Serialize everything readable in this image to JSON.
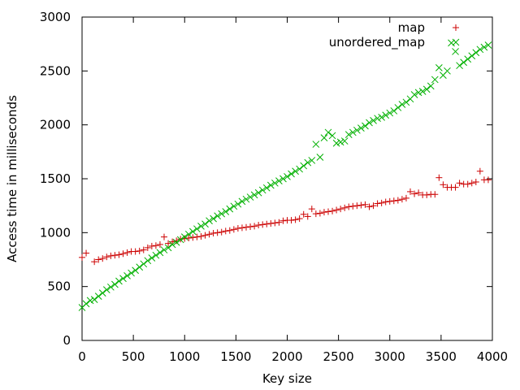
{
  "chart_data": {
    "type": "scatter",
    "xlabel": "Key size",
    "ylabel": "Access time in milliseconds",
    "xlim": [
      0,
      4000
    ],
    "ylim": [
      0,
      3000
    ],
    "xticks": [
      "0",
      "500",
      "1000",
      "1500",
      "2000",
      "2500",
      "3000",
      "3500",
      "4000"
    ],
    "yticks": [
      "0",
      "500",
      "1000",
      "1500",
      "2000",
      "2500",
      "3000"
    ],
    "grid": false,
    "legend_position": "top-right",
    "series": [
      {
        "name": "map",
        "marker": "plus",
        "color": "#cc0000",
        "points": [
          [
            0,
            770
          ],
          [
            40,
            810
          ],
          [
            120,
            730
          ],
          [
            160,
            750
          ],
          [
            200,
            760
          ],
          [
            240,
            775
          ],
          [
            280,
            785
          ],
          [
            320,
            790
          ],
          [
            360,
            795
          ],
          [
            400,
            805
          ],
          [
            440,
            815
          ],
          [
            480,
            825
          ],
          [
            520,
            825
          ],
          [
            560,
            830
          ],
          [
            600,
            840
          ],
          [
            640,
            860
          ],
          [
            680,
            875
          ],
          [
            720,
            880
          ],
          [
            760,
            890
          ],
          [
            800,
            960
          ],
          [
            840,
            900
          ],
          [
            880,
            915
          ],
          [
            920,
            925
          ],
          [
            960,
            940
          ],
          [
            1000,
            945
          ],
          [
            1040,
            950
          ],
          [
            1080,
            955
          ],
          [
            1120,
            960
          ],
          [
            1160,
            965
          ],
          [
            1200,
            975
          ],
          [
            1240,
            985
          ],
          [
            1280,
            995
          ],
          [
            1320,
            1000
          ],
          [
            1360,
            1005
          ],
          [
            1400,
            1015
          ],
          [
            1440,
            1020
          ],
          [
            1480,
            1030
          ],
          [
            1520,
            1040
          ],
          [
            1560,
            1045
          ],
          [
            1600,
            1050
          ],
          [
            1640,
            1055
          ],
          [
            1680,
            1060
          ],
          [
            1720,
            1070
          ],
          [
            1760,
            1075
          ],
          [
            1800,
            1080
          ],
          [
            1840,
            1085
          ],
          [
            1880,
            1090
          ],
          [
            1920,
            1095
          ],
          [
            1960,
            1110
          ],
          [
            2000,
            1115
          ],
          [
            2040,
            1115
          ],
          [
            2080,
            1120
          ],
          [
            2120,
            1130
          ],
          [
            2160,
            1170
          ],
          [
            2200,
            1150
          ],
          [
            2240,
            1220
          ],
          [
            2280,
            1175
          ],
          [
            2320,
            1180
          ],
          [
            2360,
            1190
          ],
          [
            2400,
            1195
          ],
          [
            2440,
            1200
          ],
          [
            2480,
            1210
          ],
          [
            2520,
            1220
          ],
          [
            2560,
            1230
          ],
          [
            2600,
            1240
          ],
          [
            2640,
            1245
          ],
          [
            2680,
            1250
          ],
          [
            2720,
            1255
          ],
          [
            2760,
            1260
          ],
          [
            2800,
            1240
          ],
          [
            2840,
            1250
          ],
          [
            2880,
            1270
          ],
          [
            2920,
            1275
          ],
          [
            2960,
            1285
          ],
          [
            3000,
            1290
          ],
          [
            3040,
            1295
          ],
          [
            3080,
            1300
          ],
          [
            3120,
            1310
          ],
          [
            3160,
            1320
          ],
          [
            3200,
            1380
          ],
          [
            3240,
            1360
          ],
          [
            3280,
            1370
          ],
          [
            3320,
            1350
          ],
          [
            3360,
            1350
          ],
          [
            3400,
            1355
          ],
          [
            3440,
            1355
          ],
          [
            3480,
            1510
          ],
          [
            3520,
            1445
          ],
          [
            3560,
            1420
          ],
          [
            3600,
            1420
          ],
          [
            3640,
            1420
          ],
          [
            3680,
            1460
          ],
          [
            3720,
            1450
          ],
          [
            3760,
            1450
          ],
          [
            3800,
            1460
          ],
          [
            3840,
            1470
          ],
          [
            3880,
            1570
          ],
          [
            3920,
            1490
          ],
          [
            3960,
            1490
          ]
        ]
      },
      {
        "name": "unordered_map",
        "marker": "cross",
        "color": "#00b000",
        "points": [
          [
            0,
            305
          ],
          [
            40,
            340
          ],
          [
            80,
            370
          ],
          [
            120,
            380
          ],
          [
            160,
            410
          ],
          [
            200,
            440
          ],
          [
            240,
            470
          ],
          [
            280,
            495
          ],
          [
            320,
            520
          ],
          [
            360,
            550
          ],
          [
            400,
            575
          ],
          [
            440,
            600
          ],
          [
            480,
            625
          ],
          [
            520,
            650
          ],
          [
            560,
            680
          ],
          [
            600,
            710
          ],
          [
            640,
            740
          ],
          [
            680,
            765
          ],
          [
            720,
            790
          ],
          [
            760,
            815
          ],
          [
            800,
            840
          ],
          [
            840,
            860
          ],
          [
            880,
            890
          ],
          [
            920,
            910
          ],
          [
            960,
            935
          ],
          [
            1000,
            960
          ],
          [
            1040,
            985
          ],
          [
            1080,
            1010
          ],
          [
            1120,
            1035
          ],
          [
            1160,
            1060
          ],
          [
            1200,
            1080
          ],
          [
            1240,
            1110
          ],
          [
            1280,
            1130
          ],
          [
            1320,
            1155
          ],
          [
            1360,
            1175
          ],
          [
            1400,
            1195
          ],
          [
            1440,
            1220
          ],
          [
            1480,
            1245
          ],
          [
            1520,
            1265
          ],
          [
            1560,
            1290
          ],
          [
            1600,
            1310
          ],
          [
            1640,
            1330
          ],
          [
            1680,
            1350
          ],
          [
            1720,
            1370
          ],
          [
            1760,
            1395
          ],
          [
            1800,
            1415
          ],
          [
            1840,
            1440
          ],
          [
            1880,
            1460
          ],
          [
            1920,
            1480
          ],
          [
            1960,
            1500
          ],
          [
            2000,
            1520
          ],
          [
            2040,
            1545
          ],
          [
            2080,
            1570
          ],
          [
            2120,
            1590
          ],
          [
            2160,
            1620
          ],
          [
            2200,
            1650
          ],
          [
            2240,
            1670
          ],
          [
            2280,
            1820
          ],
          [
            2320,
            1700
          ],
          [
            2360,
            1880
          ],
          [
            2400,
            1930
          ],
          [
            2440,
            1900
          ],
          [
            2480,
            1830
          ],
          [
            2520,
            1840
          ],
          [
            2560,
            1850
          ],
          [
            2600,
            1910
          ],
          [
            2640,
            1930
          ],
          [
            2680,
            1950
          ],
          [
            2720,
            1970
          ],
          [
            2760,
            1990
          ],
          [
            2800,
            2020
          ],
          [
            2840,
            2040
          ],
          [
            2880,
            2060
          ],
          [
            2920,
            2070
          ],
          [
            2960,
            2090
          ],
          [
            3000,
            2110
          ],
          [
            3040,
            2130
          ],
          [
            3080,
            2160
          ],
          [
            3120,
            2190
          ],
          [
            3160,
            2210
          ],
          [
            3200,
            2240
          ],
          [
            3240,
            2280
          ],
          [
            3280,
            2300
          ],
          [
            3320,
            2310
          ],
          [
            3360,
            2330
          ],
          [
            3400,
            2360
          ],
          [
            3440,
            2420
          ],
          [
            3480,
            2530
          ],
          [
            3520,
            2460
          ],
          [
            3560,
            2500
          ],
          [
            3600,
            2760
          ],
          [
            3640,
            2680
          ],
          [
            3680,
            2550
          ],
          [
            3720,
            2580
          ],
          [
            3760,
            2610
          ],
          [
            3800,
            2640
          ],
          [
            3840,
            2670
          ],
          [
            3880,
            2700
          ],
          [
            3920,
            2720
          ],
          [
            3960,
            2740
          ]
        ]
      }
    ]
  }
}
